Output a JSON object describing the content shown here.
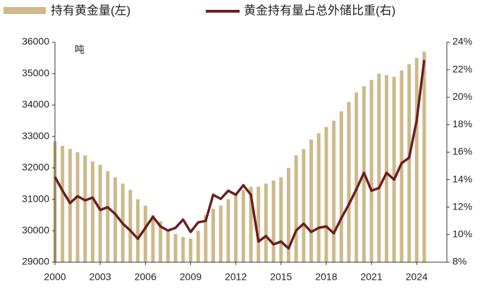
{
  "chart_data": {
    "type": "bar-line",
    "legend_bar": "持有黄金量(左)",
    "legend_line": "黄金持有量占总外储比重(右)",
    "y_unit": "吨",
    "x": [
      2000,
      2000.5,
      2001,
      2001.5,
      2002,
      2002.5,
      2003,
      2003.5,
      2004,
      2004.5,
      2005,
      2005.5,
      2006,
      2006.5,
      2007,
      2007.5,
      2008,
      2008.5,
      2009,
      2009.5,
      2010,
      2010.5,
      2011,
      2011.5,
      2012,
      2012.5,
      2013,
      2013.5,
      2014,
      2014.5,
      2015,
      2015.5,
      2016,
      2016.5,
      2017,
      2017.5,
      2018,
      2018.5,
      2019,
      2019.5,
      2020,
      2020.5,
      2021,
      2021.5,
      2022,
      2022.5,
      2023,
      2023.5,
      2024,
      2024.5
    ],
    "series": [
      {
        "name": "持有黄金量(左)",
        "color": "#cdb98a",
        "kind": "bar",
        "values": [
          32850,
          32700,
          32600,
          32500,
          32400,
          32200,
          32100,
          31900,
          31700,
          31500,
          31300,
          31000,
          30800,
          30500,
          30300,
          30000,
          29900,
          29800,
          29750,
          30000,
          30500,
          30700,
          30800,
          31000,
          31200,
          31300,
          31400,
          31400,
          31500,
          31600,
          31700,
          32000,
          32400,
          32600,
          32900,
          33100,
          33300,
          33500,
          33800,
          34100,
          34400,
          34600,
          34800,
          35000,
          34950,
          34900,
          35100,
          35300,
          35500,
          35700
        ]
      },
      {
        "name": "黄金持有量占总外储比重(右)",
        "color": "#6b1f1f",
        "kind": "line",
        "axis": "y2",
        "values": [
          14.2,
          13.2,
          12.3,
          12.8,
          12.5,
          12.7,
          11.8,
          12.0,
          11.5,
          10.8,
          10.3,
          9.7,
          10.5,
          11.3,
          10.6,
          10.3,
          10.5,
          11.1,
          10.2,
          10.9,
          11.0,
          12.9,
          12.6,
          13.2,
          12.9,
          13.6,
          12.9,
          9.5,
          9.9,
          9.3,
          9.5,
          9.0,
          10.3,
          10.8,
          10.2,
          10.5,
          10.6,
          10.1,
          11.2,
          12.2,
          13.3,
          14.5,
          13.2,
          13.4,
          14.5,
          14.0,
          15.2,
          15.6,
          18.3,
          22.7
        ]
      }
    ],
    "xlim": [
      2000,
      2026
    ],
    "xticks": [
      2000,
      2003,
      2006,
      2009,
      2012,
      2015,
      2018,
      2021,
      2024
    ],
    "ylim": [
      29000,
      36000
    ],
    "yticks": [
      29000,
      30000,
      31000,
      32000,
      33000,
      34000,
      35000,
      36000
    ],
    "y2lim": [
      8,
      24
    ],
    "y2ticks": [
      {
        "value": 8,
        "label": "8%"
      },
      {
        "value": 10,
        "label": "10%"
      },
      {
        "value": 12,
        "label": "12%"
      },
      {
        "value": 14,
        "label": "14%"
      },
      {
        "value": 16,
        "label": "16%"
      },
      {
        "value": 18,
        "label": "18%"
      },
      {
        "value": 20,
        "label": "20%"
      },
      {
        "value": 22,
        "label": "22%"
      },
      {
        "value": 24,
        "label": "24%"
      }
    ]
  }
}
